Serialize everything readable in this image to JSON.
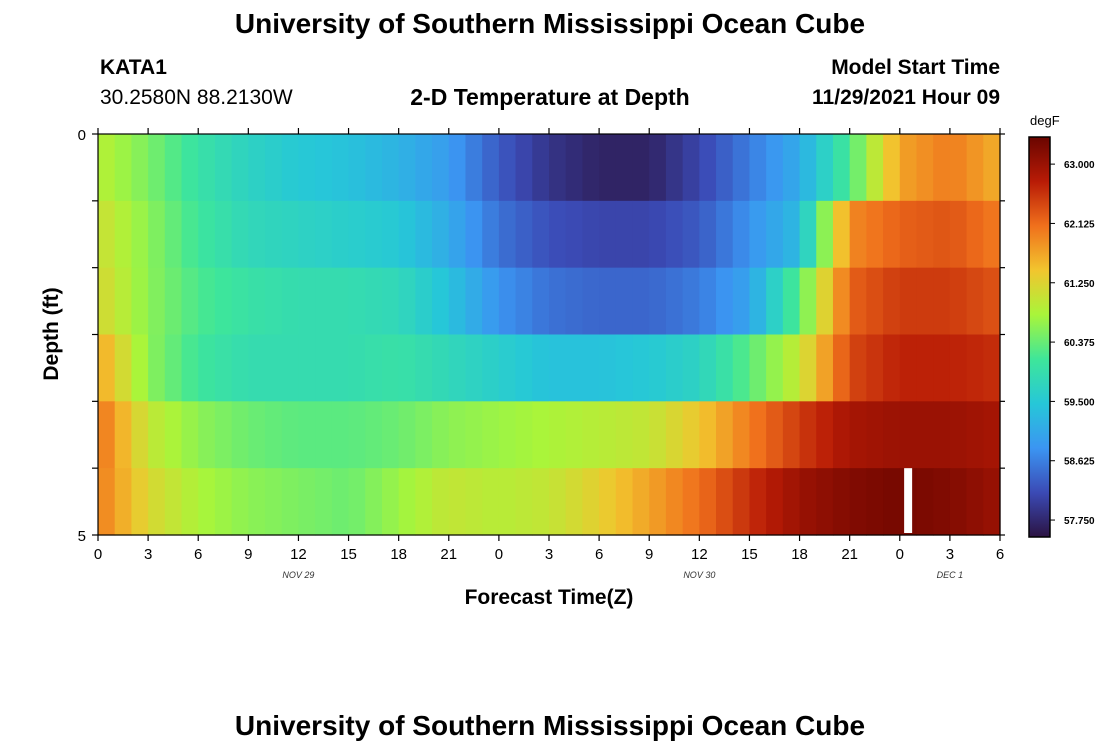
{
  "page": {
    "title": "University of Southern Mississippi Ocean Cube",
    "footer_title": "University of Southern Mississippi Ocean Cube"
  },
  "station": {
    "id": "KATA1",
    "coords": "30.2580N  88.2130W"
  },
  "plot": {
    "heading": "2-D Temperature at Depth"
  },
  "model": {
    "start_label": "Model Start Time",
    "start_value": "11/29/2021 Hour 09"
  },
  "colorbar": {
    "unit": "degF",
    "tick_labels": [
      "63.000",
      "62.125",
      "61.250",
      "60.375",
      "59.500",
      "58.625",
      "57.750"
    ],
    "tick_values": [
      63.0,
      62.125,
      61.25,
      60.375,
      59.5,
      58.625,
      57.75
    ],
    "min": 57.5,
    "max": 63.4,
    "colors": [
      "#2b1342",
      "#3b4ab5",
      "#3b95f2",
      "#26c7d8",
      "#3ee69a",
      "#a9f53a",
      "#f2c52e",
      "#f0701c",
      "#b81b06",
      "#6a0500"
    ]
  },
  "chart_data": {
    "type": "heatmap",
    "title": "2-D Temperature at Depth",
    "xlabel": "Forecast Time(Z)",
    "ylabel": "Depth (ft)",
    "units": "degF",
    "x_hours": [
      0,
      3,
      6,
      9,
      12,
      15,
      18,
      21,
      24,
      27,
      30,
      33,
      36,
      39,
      42,
      45,
      48,
      51,
      54
    ],
    "x_tick_labels": [
      "0",
      "3",
      "6",
      "9",
      "12",
      "15",
      "18",
      "21",
      "0",
      "3",
      "6",
      "9",
      "12",
      "15",
      "18",
      "21",
      "0",
      "3",
      "6"
    ],
    "date_labels": [
      {
        "hour": 12,
        "text": "NOV 29"
      },
      {
        "hour": 36,
        "text": "NOV 30"
      },
      {
        "hour": 51,
        "text": "DEC 1"
      }
    ],
    "y_tick_labels": [
      "0",
      "5"
    ],
    "ylim": [
      0,
      5
    ],
    "depth_rows_ft": [
      0,
      1,
      2,
      3,
      4,
      5
    ],
    "values": [
      [
        60.9,
        60.5,
        60.0,
        59.7,
        59.5,
        59.4,
        59.2,
        58.9,
        58.3,
        57.9,
        57.7,
        57.7,
        58.1,
        58.6,
        59.1,
        60.2,
        61.7,
        62.0,
        61.6
      ],
      [
        61.1,
        60.6,
        60.1,
        59.8,
        59.7,
        59.6,
        59.5,
        59.1,
        58.5,
        58.2,
        58.1,
        58.1,
        58.3,
        58.8,
        59.3,
        61.9,
        62.2,
        62.3,
        62.0
      ],
      [
        61.2,
        60.6,
        60.2,
        60.0,
        59.9,
        59.9,
        59.8,
        59.4,
        58.8,
        58.5,
        58.4,
        58.4,
        58.6,
        59.0,
        60.3,
        62.2,
        62.5,
        62.5,
        62.3
      ],
      [
        61.7,
        60.6,
        60.1,
        59.9,
        59.9,
        59.9,
        60.0,
        59.8,
        59.6,
        59.4,
        59.4,
        59.5,
        59.7,
        60.3,
        61.0,
        62.4,
        62.7,
        62.7,
        62.6
      ],
      [
        62.1,
        61.0,
        60.6,
        60.4,
        60.3,
        60.3,
        60.4,
        60.6,
        60.7,
        60.8,
        60.9,
        61.0,
        61.4,
        62.0,
        62.5,
        62.9,
        63.0,
        63.0,
        62.9
      ],
      [
        62.0,
        61.2,
        60.8,
        60.6,
        60.5,
        60.4,
        60.7,
        61.0,
        60.9,
        61.0,
        61.3,
        61.7,
        62.1,
        62.6,
        63.0,
        63.2,
        63.3,
        63.2,
        63.0
      ]
    ],
    "missing": [
      {
        "hour": 48.5,
        "row": 5
      }
    ]
  }
}
